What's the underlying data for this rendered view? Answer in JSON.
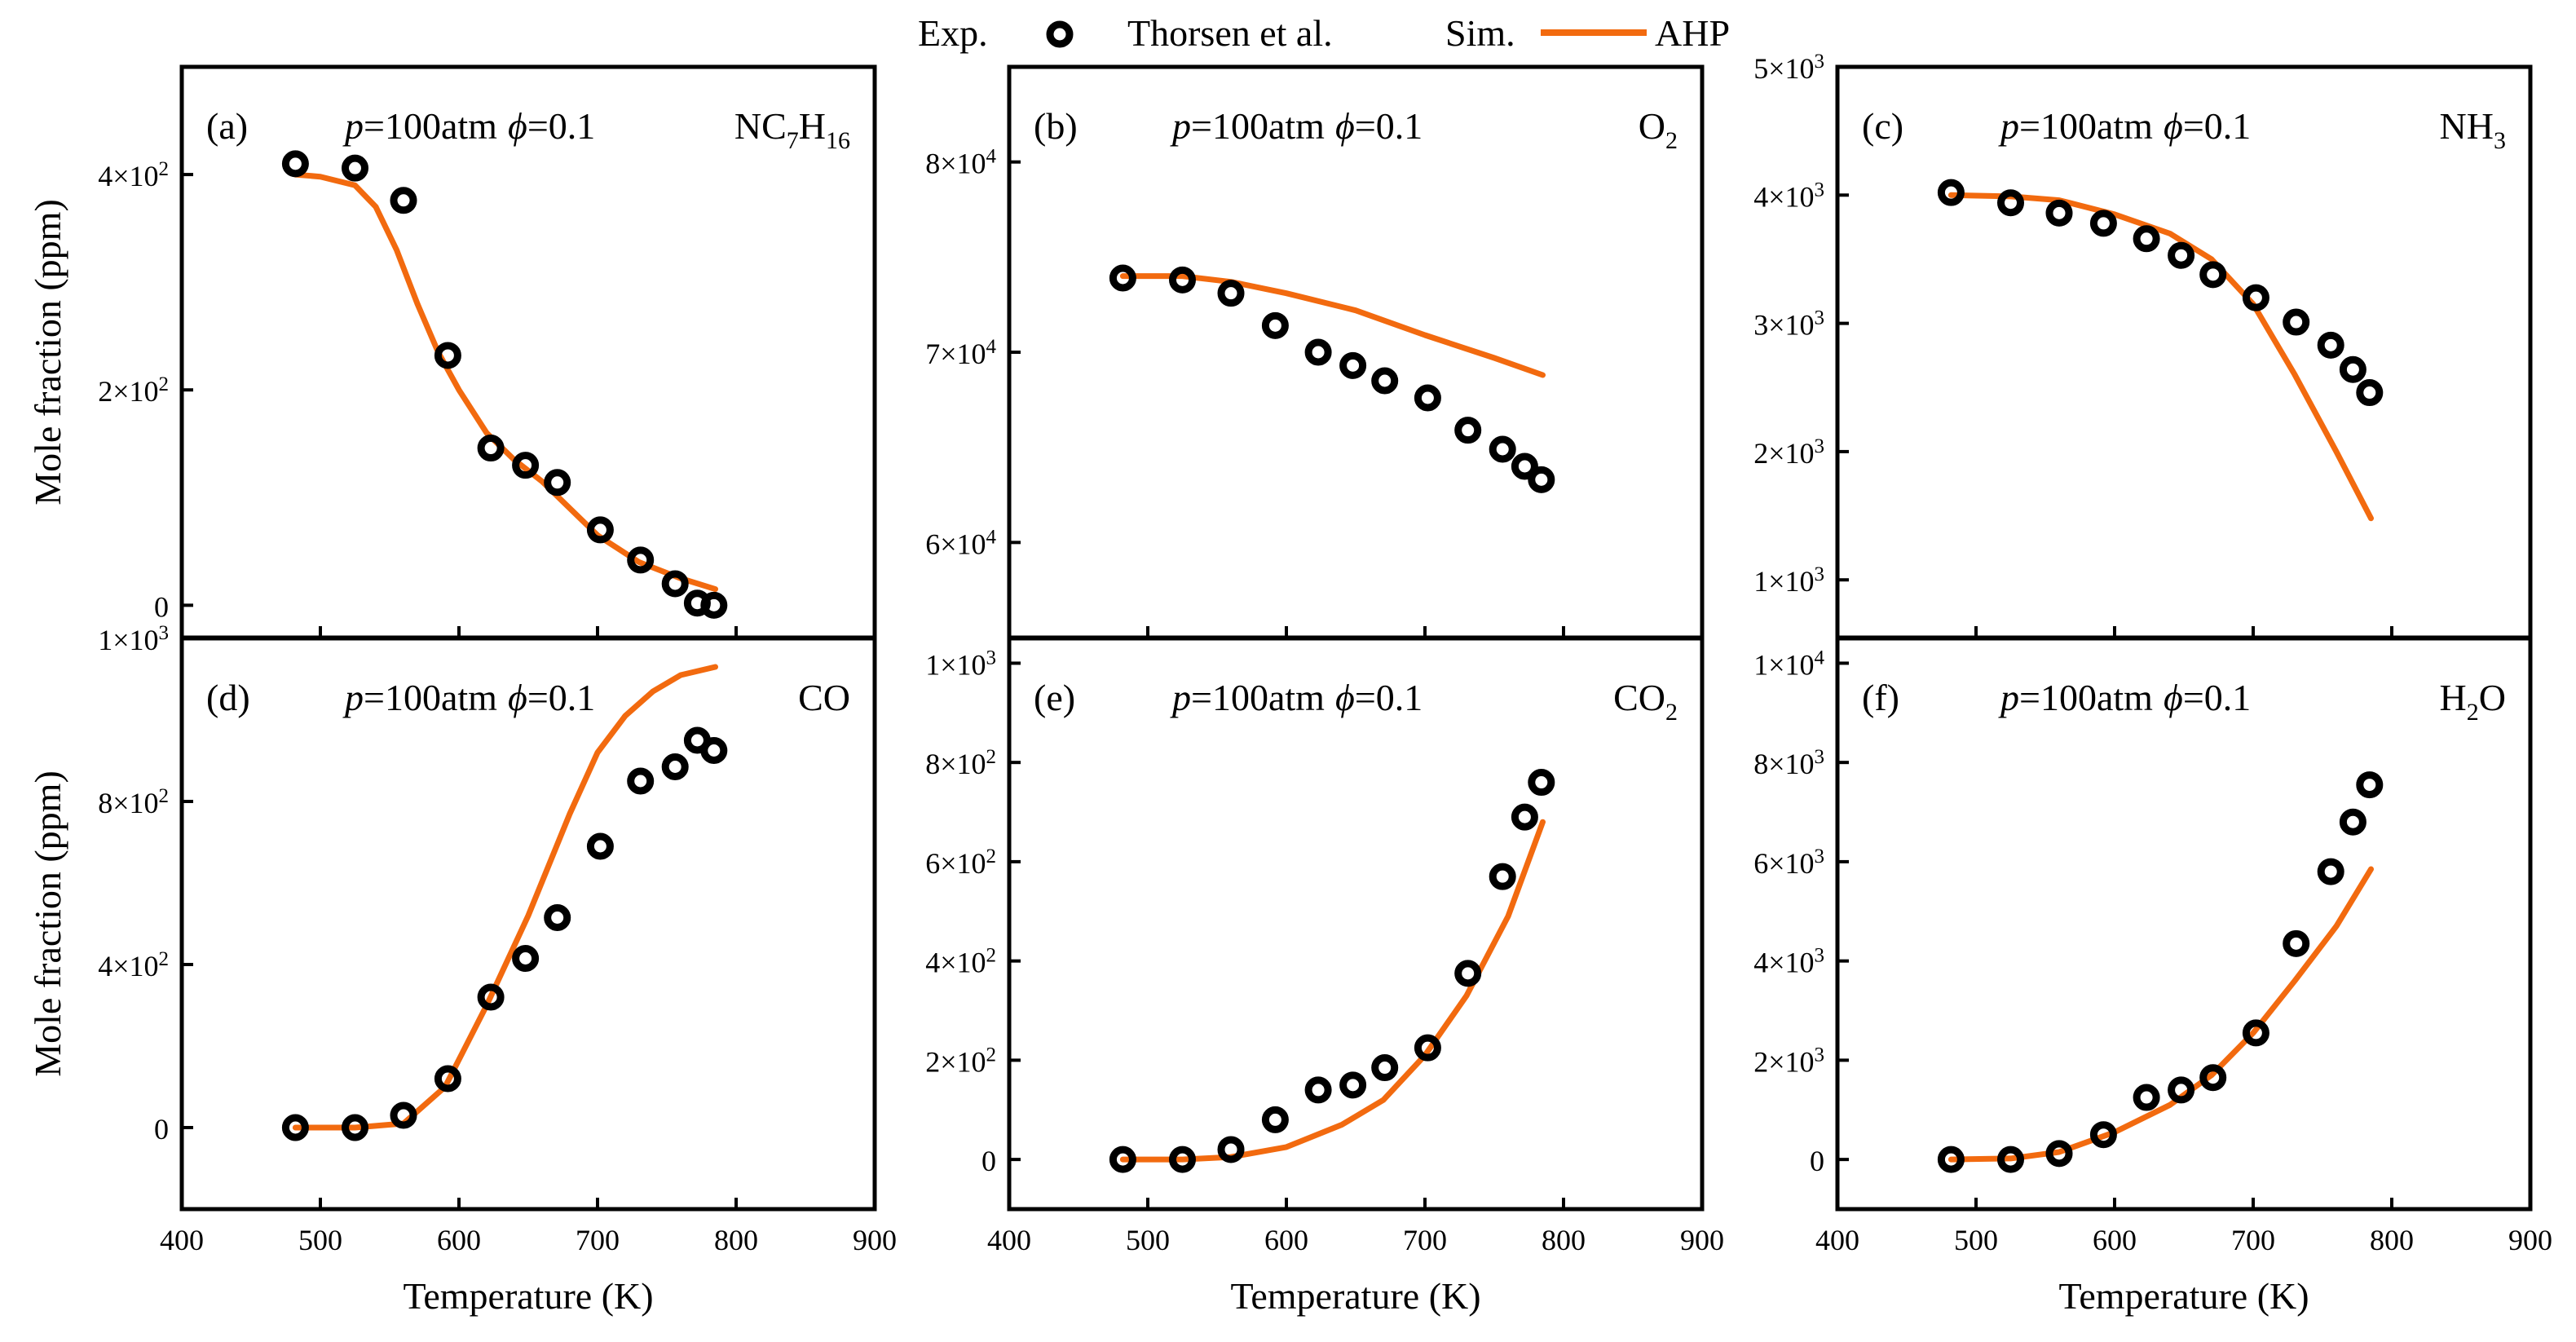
{
  "legend": {
    "exp_label": "Exp.",
    "exp_name": "Thorsen et al.",
    "sim_label": "Sim.",
    "sim_name": "AHP"
  },
  "axis_titles": {
    "ylabel": "Mole fraction (ppm)",
    "xlabel": "Temperature (K)"
  },
  "colors": {
    "sim_line": "#f26a0f",
    "exp_marker": "#000000"
  },
  "chart_data": [
    {
      "type": "line",
      "panel": "(a)",
      "condition_p": "=100atm",
      "condition_phi": "=0.1",
      "species": "NC7H16",
      "species_main": "NC",
      "species_parts": [
        {
          "t": "NC",
          "sub": false
        },
        {
          "t": "7",
          "sub": true
        },
        {
          "t": "H",
          "sub": false
        },
        {
          "t": "16",
          "sub": true
        }
      ],
      "xlim": [
        400,
        900
      ],
      "ylim": [
        -30,
        500
      ],
      "yticks": [
        {
          "v": 0,
          "m": "0",
          "e": ""
        },
        {
          "v": 200,
          "m": "2×10",
          "e": "2"
        },
        {
          "v": 400,
          "m": "4×10",
          "e": "2"
        }
      ],
      "xticks": [],
      "ylabel": "Mole fraction (ppm)",
      "xlabel": "",
      "series": [
        {
          "name": "Thorsen et al.",
          "kind": "scatter",
          "x": [
            482,
            525,
            560,
            592,
            623,
            648,
            671,
            702,
            731,
            756,
            772,
            784
          ],
          "y": [
            410,
            406,
            376,
            232,
            146,
            130,
            114,
            70,
            42,
            20,
            2,
            0
          ]
        },
        {
          "name": "AHP",
          "kind": "line",
          "x": [
            482,
            500,
            525,
            540,
            555,
            570,
            585,
            600,
            620,
            640,
            660,
            680,
            700,
            730,
            760,
            785
          ],
          "y": [
            400,
            398,
            390,
            370,
            330,
            280,
            235,
            200,
            160,
            135,
            115,
            90,
            65,
            40,
            25,
            15
          ]
        }
      ]
    },
    {
      "type": "line",
      "panel": "(b)",
      "condition_p": "=100atm",
      "condition_phi": "=0.1",
      "species": "O2",
      "species_main": "O",
      "species_parts": [
        {
          "t": "O",
          "sub": false
        },
        {
          "t": "2",
          "sub": true
        }
      ],
      "xlim": [
        400,
        900
      ],
      "ylim": [
        55000,
        85000
      ],
      "yticks": [
        {
          "v": 60000,
          "m": "6×10",
          "e": "4"
        },
        {
          "v": 70000,
          "m": "7×10",
          "e": "4"
        },
        {
          "v": 80000,
          "m": "8×10",
          "e": "4"
        }
      ],
      "xticks": [],
      "ylabel": "",
      "xlabel": "",
      "series": [
        {
          "name": "Thorsen et al.",
          "kind": "scatter",
          "x": [
            482,
            525,
            560,
            592,
            623,
            648,
            671,
            702,
            731,
            756,
            772,
            784
          ],
          "y": [
            73900,
            73800,
            73100,
            71400,
            70000,
            69300,
            68500,
            67600,
            65900,
            64900,
            64000,
            63300
          ]
        },
        {
          "name": "AHP",
          "kind": "line",
          "x": [
            482,
            525,
            560,
            600,
            650,
            700,
            750,
            785
          ],
          "y": [
            74000,
            74000,
            73700,
            73100,
            72200,
            70900,
            69700,
            68800
          ]
        }
      ]
    },
    {
      "type": "line",
      "panel": "(c)",
      "condition_p": "=100atm",
      "condition_phi": "=0.1",
      "species": "NH3",
      "species_main": "NH",
      "species_parts": [
        {
          "t": "NH",
          "sub": false
        },
        {
          "t": "3",
          "sub": true
        }
      ],
      "xlim": [
        400,
        900
      ],
      "ylim": [
        550,
        5000
      ],
      "yticks": [
        {
          "v": 1000,
          "m": "1×10",
          "e": "3"
        },
        {
          "v": 2000,
          "m": "2×10",
          "e": "3"
        },
        {
          "v": 3000,
          "m": "3×10",
          "e": "3"
        },
        {
          "v": 4000,
          "m": "4×10",
          "e": "3"
        },
        {
          "v": 5000,
          "m": "5×10",
          "e": "3"
        }
      ],
      "xticks": [],
      "ylabel": "",
      "xlabel": "",
      "series": [
        {
          "name": "Thorsen et al.",
          "kind": "scatter",
          "x": [
            482,
            525,
            560,
            592,
            623,
            648,
            671,
            702,
            731,
            756,
            772,
            784
          ],
          "y": [
            4020,
            3940,
            3860,
            3780,
            3660,
            3530,
            3380,
            3200,
            3010,
            2830,
            2640,
            2460
          ]
        },
        {
          "name": "AHP",
          "kind": "line",
          "x": [
            482,
            525,
            560,
            600,
            640,
            670,
            700,
            730,
            760,
            785
          ],
          "y": [
            4000,
            3990,
            3960,
            3850,
            3700,
            3500,
            3150,
            2600,
            2000,
            1480
          ]
        }
      ]
    },
    {
      "type": "line",
      "panel": "(d)",
      "condition_p": "=100atm",
      "condition_phi": "=0.1",
      "species": "CO",
      "species_main": "CO",
      "species_parts": [
        {
          "t": "CO",
          "sub": false
        }
      ],
      "xlim": [
        400,
        900
      ],
      "ylim": [
        -200,
        1200
      ],
      "yticks": [
        {
          "v": 0,
          "m": "0",
          "e": ""
        },
        {
          "v": 400,
          "m": "4×10",
          "e": "2"
        },
        {
          "v": 800,
          "m": "8×10",
          "e": "2"
        },
        {
          "v": 1200,
          "m": "1×10",
          "e": "3"
        }
      ],
      "xticks": [
        400,
        500,
        600,
        700,
        800,
        900
      ],
      "ylabel": "Mole fraction (ppm)",
      "xlabel": "Temperature (K)",
      "series": [
        {
          "name": "Thorsen et al.",
          "kind": "scatter",
          "x": [
            482,
            525,
            560,
            592,
            623,
            648,
            671,
            702,
            731,
            756,
            772,
            784
          ],
          "y": [
            0,
            0,
            30,
            120,
            320,
            415,
            515,
            690,
            850,
            885,
            950,
            925
          ]
        },
        {
          "name": "AHP",
          "kind": "line",
          "x": [
            482,
            525,
            560,
            590,
            620,
            650,
            680,
            700,
            720,
            740,
            760,
            785
          ],
          "y": [
            0,
            0,
            10,
            100,
            300,
            520,
            770,
            920,
            1010,
            1070,
            1110,
            1130
          ]
        }
      ]
    },
    {
      "type": "line",
      "panel": "(e)",
      "condition_p": "=100atm",
      "condition_phi": "=0.1",
      "species": "CO2",
      "species_main": "CO",
      "species_parts": [
        {
          "t": "CO",
          "sub": false
        },
        {
          "t": "2",
          "sub": true
        }
      ],
      "xlim": [
        400,
        900
      ],
      "ylim": [
        -100,
        1050
      ],
      "yticks": [
        {
          "v": 0,
          "m": "0",
          "e": ""
        },
        {
          "v": 200,
          "m": "2×10",
          "e": "2"
        },
        {
          "v": 400,
          "m": "4×10",
          "e": "2"
        },
        {
          "v": 600,
          "m": "6×10",
          "e": "2"
        },
        {
          "v": 800,
          "m": "8×10",
          "e": "2"
        },
        {
          "v": 1000,
          "m": "1×10",
          "e": "3"
        }
      ],
      "xticks": [
        400,
        500,
        600,
        700,
        800,
        900
      ],
      "ylabel": "",
      "xlabel": "Temperature (K)",
      "series": [
        {
          "name": "Thorsen et al.",
          "kind": "scatter",
          "x": [
            482,
            525,
            560,
            592,
            623,
            648,
            671,
            702,
            731,
            756,
            772,
            784
          ],
          "y": [
            0,
            0,
            20,
            80,
            140,
            150,
            185,
            225,
            375,
            570,
            690,
            760
          ]
        },
        {
          "name": "AHP",
          "kind": "line",
          "x": [
            482,
            525,
            560,
            600,
            640,
            670,
            700,
            730,
            760,
            785
          ],
          "y": [
            0,
            0,
            5,
            25,
            70,
            120,
            210,
            330,
            490,
            680
          ]
        }
      ]
    },
    {
      "type": "line",
      "panel": "(f)",
      "condition_p": "=100atm",
      "condition_phi": "=0.1",
      "species": "H2O",
      "species_main": "H",
      "species_parts": [
        {
          "t": "H",
          "sub": false
        },
        {
          "t": "2",
          "sub": true
        },
        {
          "t": "O",
          "sub": false
        }
      ],
      "xlim": [
        400,
        900
      ],
      "ylim": [
        -1000,
        10500
      ],
      "yticks": [
        {
          "v": 0,
          "m": "0",
          "e": ""
        },
        {
          "v": 2000,
          "m": "2×10",
          "e": "3"
        },
        {
          "v": 4000,
          "m": "4×10",
          "e": "3"
        },
        {
          "v": 6000,
          "m": "6×10",
          "e": "3"
        },
        {
          "v": 8000,
          "m": "8×10",
          "e": "3"
        },
        {
          "v": 10000,
          "m": "1×10",
          "e": "4"
        }
      ],
      "xticks": [
        400,
        500,
        600,
        700,
        800,
        900
      ],
      "ylabel": "",
      "xlabel": "Temperature (K)",
      "series": [
        {
          "name": "Thorsen et al.",
          "kind": "scatter",
          "x": [
            482,
            525,
            560,
            592,
            623,
            648,
            671,
            702,
            731,
            756,
            772,
            784
          ],
          "y": [
            0,
            0,
            120,
            500,
            1250,
            1400,
            1650,
            2550,
            4350,
            5800,
            6800,
            7550
          ]
        },
        {
          "name": "AHP",
          "kind": "line",
          "x": [
            482,
            525,
            560,
            600,
            640,
            670,
            700,
            730,
            760,
            785
          ],
          "y": [
            0,
            20,
            150,
            550,
            1100,
            1700,
            2550,
            3600,
            4700,
            5850
          ]
        }
      ]
    }
  ]
}
